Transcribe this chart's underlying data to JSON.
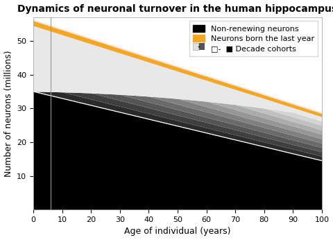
{
  "title": "Dynamics of neuronal turnover in the human hippocampus",
  "xlabel": "Age of individual (years)",
  "ylabel": "Number of neurons (millions)",
  "xlim": [
    0,
    100
  ],
  "ylim": [
    0,
    57
  ],
  "xticks": [
    0,
    10,
    20,
    30,
    40,
    50,
    60,
    70,
    80,
    90,
    100
  ],
  "yticks": [
    10,
    20,
    30,
    40,
    50
  ],
  "total_at_birth": 56.0,
  "total_at_100": 28.5,
  "non_renewing_at_birth": 35.0,
  "non_renewing_at_100": 14.5,
  "vertical_line_x": 6,
  "num_decade_cohorts": 10,
  "background_color": "#ffffff",
  "legend_labels": [
    "Non-renewing neurons",
    "Neurons born the last year",
    "□-  ■ Decade cohorts"
  ],
  "decade_cohort_colors_light_to_dark": [
    "#e8e8e8",
    "#d4d4d4",
    "#c0c0c0",
    "#ababab",
    "#969696",
    "#808080",
    "#6a6a6a",
    "#555555",
    "#3f3f3f",
    "#2a2a2a"
  ],
  "orange_color": "#f5a623",
  "white_line_start_y": 35.0,
  "white_line_end_y": 14.5
}
